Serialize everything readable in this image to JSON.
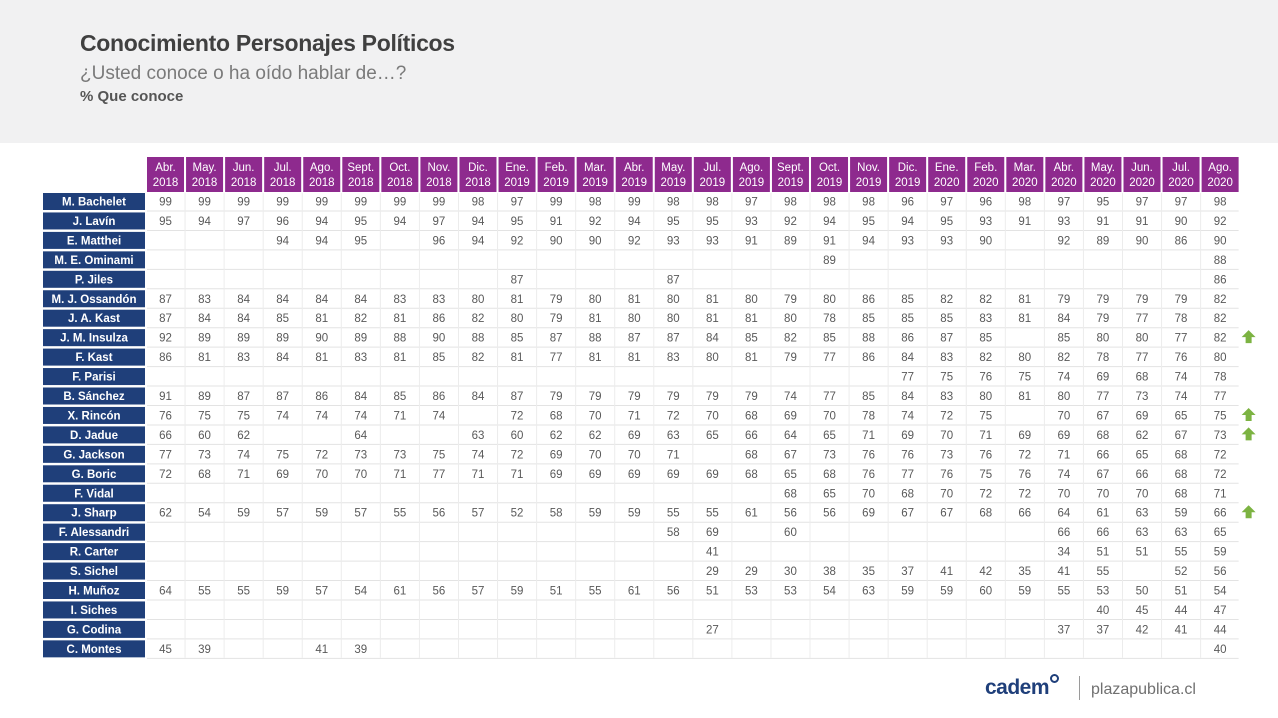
{
  "header": {
    "title": "Conocimiento Personajes Políticos",
    "subtitle": "¿Usted conoce o ha oído hablar de…?",
    "metric": "% Que conoce"
  },
  "colors": {
    "header_bg": "#f1f1f2",
    "column_header_bg": "#8e2a8e",
    "row_label_bg": "#1f3f7a",
    "up_arrow": "#7cb342",
    "brand": "#1f3f7a"
  },
  "footer": {
    "logo_text": "cadem",
    "site": "plazapublica.cl"
  },
  "chart_data": {
    "type": "table",
    "columns": [
      [
        "Abr.",
        "2018"
      ],
      [
        "May.",
        "2018"
      ],
      [
        "Jun.",
        "2018"
      ],
      [
        "Jul.",
        "2018"
      ],
      [
        "Ago.",
        "2018"
      ],
      [
        "Sept.",
        "2018"
      ],
      [
        "Oct.",
        "2018"
      ],
      [
        "Nov.",
        "2018"
      ],
      [
        "Dic.",
        "2018"
      ],
      [
        "Ene.",
        "2019"
      ],
      [
        "Feb.",
        "2019"
      ],
      [
        "Mar.",
        "2019"
      ],
      [
        "Abr.",
        "2019"
      ],
      [
        "May.",
        "2019"
      ],
      [
        "Jul.",
        "2019"
      ],
      [
        "Ago.",
        "2019"
      ],
      [
        "Sept.",
        "2019"
      ],
      [
        "Oct.",
        "2019"
      ],
      [
        "Nov.",
        "2019"
      ],
      [
        "Dic.",
        "2019"
      ],
      [
        "Ene.",
        "2020"
      ],
      [
        "Feb.",
        "2020"
      ],
      [
        "Mar.",
        "2020"
      ],
      [
        "Abr.",
        "2020"
      ],
      [
        "May.",
        "2020"
      ],
      [
        "Jun.",
        "2020"
      ],
      [
        "Jul.",
        "2020"
      ],
      [
        "Ago.",
        "2020"
      ]
    ],
    "rows": [
      {
        "name": "M. Bachelet",
        "values": [
          99,
          99,
          99,
          99,
          99,
          99,
          99,
          99,
          98,
          97,
          99,
          98,
          99,
          98,
          98,
          97,
          98,
          98,
          98,
          96,
          97,
          96,
          98,
          97,
          95,
          97,
          97,
          98
        ]
      },
      {
        "name": "J. Lavín",
        "values": [
          95,
          94,
          97,
          96,
          94,
          95,
          94,
          97,
          94,
          95,
          91,
          92,
          94,
          95,
          95,
          93,
          92,
          94,
          95,
          94,
          95,
          93,
          91,
          93,
          91,
          91,
          90,
          92
        ]
      },
      {
        "name": "E. Matthei",
        "values": [
          null,
          null,
          null,
          94,
          94,
          95,
          null,
          96,
          94,
          92,
          90,
          90,
          92,
          93,
          93,
          91,
          89,
          91,
          94,
          93,
          93,
          90,
          null,
          92,
          89,
          90,
          86,
          90
        ]
      },
      {
        "name": "M. E. Ominami",
        "values": [
          null,
          null,
          null,
          null,
          null,
          null,
          null,
          null,
          null,
          null,
          null,
          null,
          null,
          null,
          null,
          null,
          null,
          89,
          null,
          null,
          null,
          null,
          null,
          null,
          null,
          null,
          null,
          88
        ]
      },
      {
        "name": "P. Jiles",
        "values": [
          null,
          null,
          null,
          null,
          null,
          null,
          null,
          null,
          null,
          87,
          null,
          null,
          null,
          87,
          null,
          null,
          null,
          null,
          null,
          null,
          null,
          null,
          null,
          null,
          null,
          null,
          null,
          86
        ]
      },
      {
        "name": "M. J. Ossandón",
        "values": [
          87,
          83,
          84,
          84,
          84,
          84,
          83,
          83,
          80,
          81,
          79,
          80,
          81,
          80,
          81,
          80,
          79,
          80,
          86,
          85,
          82,
          82,
          81,
          79,
          79,
          79,
          79,
          82
        ]
      },
      {
        "name": "J. A. Kast",
        "values": [
          87,
          84,
          84,
          85,
          81,
          82,
          81,
          86,
          82,
          80,
          79,
          81,
          80,
          80,
          81,
          81,
          80,
          78,
          85,
          85,
          85,
          83,
          81,
          84,
          79,
          77,
          78,
          82
        ]
      },
      {
        "name": "J. M. Insulza",
        "values": [
          92,
          89,
          89,
          89,
          90,
          89,
          88,
          90,
          88,
          85,
          87,
          88,
          87,
          87,
          84,
          85,
          82,
          85,
          88,
          86,
          87,
          85,
          null,
          85,
          80,
          80,
          77,
          82
        ],
        "arrow": true
      },
      {
        "name": "F. Kast",
        "values": [
          86,
          81,
          83,
          84,
          81,
          83,
          81,
          85,
          82,
          81,
          77,
          81,
          81,
          83,
          80,
          81,
          79,
          77,
          86,
          84,
          83,
          82,
          80,
          82,
          78,
          77,
          76,
          80
        ]
      },
      {
        "name": "F. Parisi",
        "values": [
          null,
          null,
          null,
          null,
          null,
          null,
          null,
          null,
          null,
          null,
          null,
          null,
          null,
          null,
          null,
          null,
          null,
          null,
          null,
          77,
          75,
          76,
          75,
          74,
          69,
          68,
          74,
          78
        ]
      },
      {
        "name": "B. Sánchez",
        "values": [
          91,
          89,
          87,
          87,
          86,
          84,
          85,
          86,
          84,
          87,
          79,
          79,
          79,
          79,
          79,
          79,
          74,
          77,
          85,
          84,
          83,
          80,
          81,
          80,
          77,
          73,
          74,
          77
        ]
      },
      {
        "name": "X. Rincón",
        "values": [
          76,
          75,
          75,
          74,
          74,
          74,
          71,
          74,
          null,
          72,
          68,
          70,
          71,
          72,
          70,
          68,
          69,
          70,
          78,
          74,
          72,
          75,
          null,
          70,
          67,
          69,
          65,
          75
        ],
        "arrow": true
      },
      {
        "name": "D. Jadue",
        "values": [
          66,
          60,
          62,
          null,
          null,
          64,
          null,
          null,
          63,
          60,
          62,
          62,
          69,
          63,
          65,
          66,
          64,
          65,
          71,
          69,
          70,
          71,
          69,
          69,
          68,
          62,
          67,
          73
        ],
        "arrow": true
      },
      {
        "name": "G. Jackson",
        "values": [
          77,
          73,
          74,
          75,
          72,
          73,
          73,
          75,
          74,
          72,
          69,
          70,
          70,
          71,
          null,
          68,
          67,
          73,
          76,
          76,
          73,
          76,
          72,
          71,
          66,
          65,
          68,
          72
        ]
      },
      {
        "name": "G. Boric",
        "values": [
          72,
          68,
          71,
          69,
          70,
          70,
          71,
          77,
          71,
          71,
          69,
          69,
          69,
          69,
          69,
          68,
          65,
          68,
          76,
          77,
          76,
          75,
          76,
          74,
          67,
          66,
          68,
          72
        ]
      },
      {
        "name": "F. Vidal",
        "values": [
          null,
          null,
          null,
          null,
          null,
          null,
          null,
          null,
          null,
          null,
          null,
          null,
          null,
          null,
          null,
          null,
          68,
          65,
          70,
          68,
          70,
          72,
          72,
          70,
          70,
          70,
          68,
          71
        ]
      },
      {
        "name": "J. Sharp",
        "values": [
          62,
          54,
          59,
          57,
          59,
          57,
          55,
          56,
          57,
          52,
          58,
          59,
          59,
          55,
          55,
          61,
          56,
          56,
          69,
          67,
          67,
          68,
          66,
          64,
          61,
          63,
          59,
          66
        ],
        "arrow": true
      },
      {
        "name": "F. Alessandri",
        "values": [
          null,
          null,
          null,
          null,
          null,
          null,
          null,
          null,
          null,
          null,
          null,
          null,
          null,
          58,
          69,
          null,
          60,
          null,
          null,
          null,
          null,
          null,
          null,
          66,
          66,
          63,
          63,
          65
        ]
      },
      {
        "name": "R. Carter",
        "values": [
          null,
          null,
          null,
          null,
          null,
          null,
          null,
          null,
          null,
          null,
          null,
          null,
          null,
          null,
          41,
          null,
          null,
          null,
          null,
          null,
          null,
          null,
          null,
          34,
          51,
          51,
          55,
          59
        ]
      },
      {
        "name": "S. Sichel",
        "values": [
          null,
          null,
          null,
          null,
          null,
          null,
          null,
          null,
          null,
          null,
          null,
          null,
          null,
          null,
          29,
          29,
          30,
          38,
          35,
          37,
          41,
          42,
          35,
          41,
          55,
          null,
          52,
          56
        ]
      },
      {
        "name": "H. Muñoz",
        "values": [
          64,
          55,
          55,
          59,
          57,
          54,
          61,
          56,
          57,
          59,
          51,
          55,
          61,
          56,
          51,
          53,
          53,
          54,
          63,
          59,
          59,
          60,
          59,
          55,
          53,
          50,
          51,
          54
        ]
      },
      {
        "name": "I. Siches",
        "values": [
          null,
          null,
          null,
          null,
          null,
          null,
          null,
          null,
          null,
          null,
          null,
          null,
          null,
          null,
          null,
          null,
          null,
          null,
          null,
          null,
          null,
          null,
          null,
          null,
          40,
          45,
          44,
          47
        ]
      },
      {
        "name": "G. Codina",
        "values": [
          null,
          null,
          null,
          null,
          null,
          null,
          null,
          null,
          null,
          null,
          null,
          null,
          null,
          null,
          27,
          null,
          null,
          null,
          null,
          null,
          null,
          null,
          null,
          37,
          37,
          42,
          41,
          44
        ]
      },
      {
        "name": "C. Montes",
        "values": [
          45,
          39,
          null,
          null,
          41,
          39,
          null,
          null,
          null,
          null,
          null,
          null,
          null,
          null,
          null,
          null,
          null,
          null,
          null,
          null,
          null,
          null,
          null,
          null,
          null,
          null,
          null,
          40
        ]
      }
    ]
  }
}
